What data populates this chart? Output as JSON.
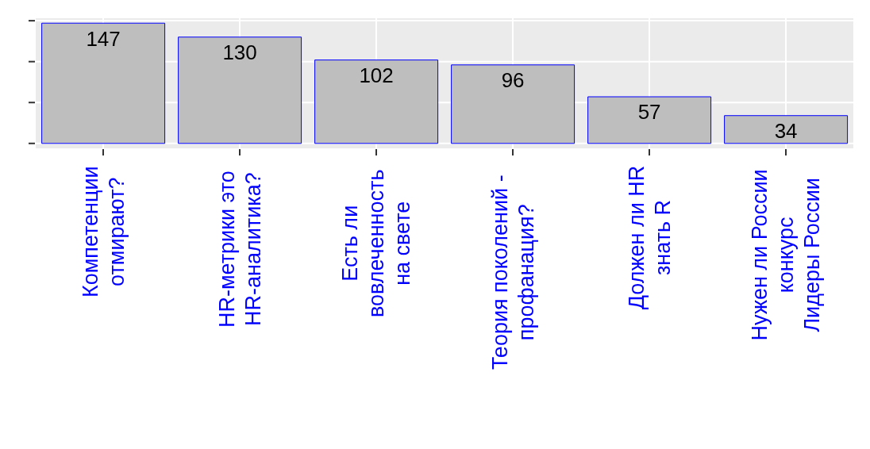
{
  "chart_data": {
    "type": "bar",
    "categories": [
      "Компетенции\nотмирают?",
      "HR-метрики это\nHR-аналитика?",
      "Есть ли\nвовлеченность\nна свете",
      "Теория поколений -\nпрофанация?",
      "Должен ли HR\nзнать R",
      "Нужен ли России\nконкурс\nЛидеры России"
    ],
    "values": [
      147,
      130,
      102,
      96,
      57,
      34
    ],
    "color": "#bebebe",
    "data_labels": true,
    "ylim": [
      -7,
      154
    ],
    "yticks": [
      {
        "value": 0,
        "label": null
      },
      {
        "value": 50,
        "label": null
      },
      {
        "value": 100,
        "label": null
      },
      {
        "value": 150,
        "label": null
      }
    ],
    "tick_labels": "x",
    "grid": true
  }
}
